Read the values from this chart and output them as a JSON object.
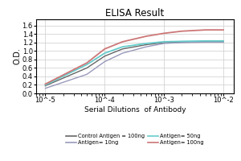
{
  "title": "ELISA Result",
  "ylabel": "O.D.",
  "xlabel": "Serial Dilutions  of Antibody",
  "ylim": [
    0,
    1.75
  ],
  "yticks": [
    0,
    0.2,
    0.4,
    0.6,
    0.8,
    1.0,
    1.2,
    1.4,
    1.6
  ],
  "x_ticks": [
    0.01,
    0.001,
    0.0001,
    1e-05
  ],
  "x_tick_labels": [
    "10^-2",
    "10^-3",
    "10^-4",
    "10^-5"
  ],
  "lines": [
    {
      "label": "Control Antigen = 100ng",
      "color": "#666666",
      "linewidth": 1.0,
      "x": [
        0.01,
        0.005,
        0.002,
        0.001,
        0.0005,
        0.0002,
        0.0001,
        5e-05,
        1e-05
      ],
      "y": [
        1.22,
        1.22,
        1.21,
        1.2,
        1.15,
        1.05,
        0.88,
        0.6,
        0.18
      ]
    },
    {
      "label": "Antigen= 10ng",
      "color": "#9999bb",
      "linewidth": 1.0,
      "x": [
        0.01,
        0.005,
        0.002,
        0.001,
        0.0005,
        0.0002,
        0.0001,
        5e-05,
        1e-05
      ],
      "y": [
        1.21,
        1.21,
        1.2,
        1.18,
        1.1,
        0.95,
        0.75,
        0.45,
        0.12
      ]
    },
    {
      "label": "Antigen= 50ng",
      "color": "#66cccc",
      "linewidth": 1.3,
      "x": [
        0.01,
        0.005,
        0.002,
        0.001,
        0.0005,
        0.0002,
        0.0001,
        5e-05,
        1e-05
      ],
      "y": [
        1.24,
        1.24,
        1.23,
        1.22,
        1.18,
        1.1,
        0.95,
        0.68,
        0.2
      ]
    },
    {
      "label": "Antigen= 100ng",
      "color": "#cc7777",
      "linewidth": 1.3,
      "x": [
        0.01,
        0.005,
        0.002,
        0.001,
        0.0005,
        0.0002,
        0.0001,
        5e-05,
        1e-05
      ],
      "y": [
        1.5,
        1.5,
        1.47,
        1.42,
        1.35,
        1.22,
        1.05,
        0.72,
        0.22
      ]
    }
  ],
  "legend_entries": [
    {
      "label": "Control Antigen = 100ng",
      "color": "#666666"
    },
    {
      "label": "Antigen= 10ng",
      "color": "#9999bb"
    },
    {
      "label": "Antigen= 50ng",
      "color": "#66cccc"
    },
    {
      "label": "Antigen= 100ng",
      "color": "#cc7777"
    }
  ],
  "background_color": "#ffffff",
  "grid_color": "#cccccc"
}
